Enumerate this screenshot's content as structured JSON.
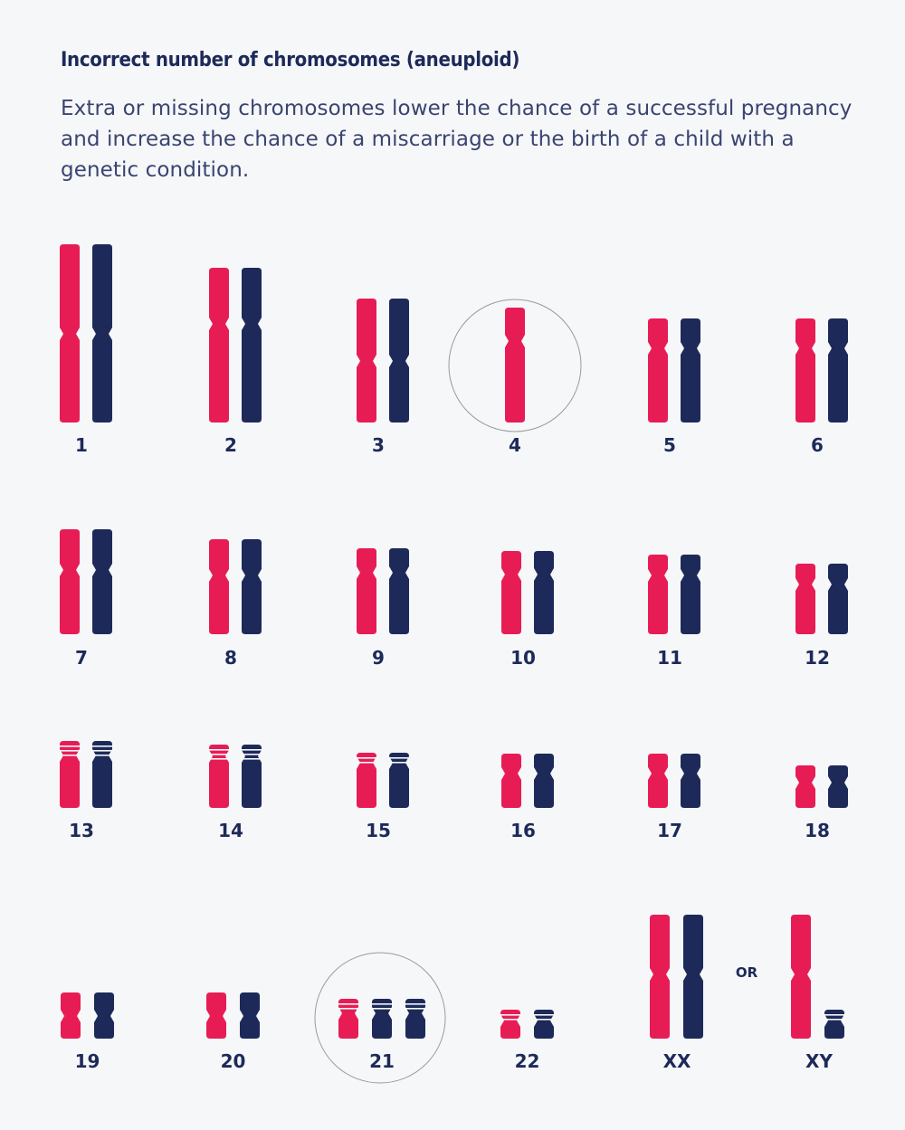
{
  "header": {
    "title": "Incorrect number of chromosomes (aneuploid)",
    "description": "Extra or missing chromosomes lower the chance of a successful pregnancy and increase the chance of a miscarriage or the birth of a child with a genetic condition."
  },
  "colors": {
    "pink": "#e81c55",
    "navy": "#1d2a59",
    "circle": "#9a9a9a",
    "background": "#f6f7f9"
  },
  "karyotype": {
    "pairs": [
      {
        "label": "1",
        "copies": 2,
        "highlighted": false
      },
      {
        "label": "2",
        "copies": 2,
        "highlighted": false
      },
      {
        "label": "3",
        "copies": 2,
        "highlighted": false
      },
      {
        "label": "4",
        "copies": 1,
        "highlighted": true
      },
      {
        "label": "5",
        "copies": 2,
        "highlighted": false
      },
      {
        "label": "6",
        "copies": 2,
        "highlighted": false
      },
      {
        "label": "7",
        "copies": 2,
        "highlighted": false
      },
      {
        "label": "8",
        "copies": 2,
        "highlighted": false
      },
      {
        "label": "9",
        "copies": 2,
        "highlighted": false
      },
      {
        "label": "10",
        "copies": 2,
        "highlighted": false
      },
      {
        "label": "11",
        "copies": 2,
        "highlighted": false
      },
      {
        "label": "12",
        "copies": 2,
        "highlighted": false
      },
      {
        "label": "13",
        "copies": 2,
        "highlighted": false
      },
      {
        "label": "14",
        "copies": 2,
        "highlighted": false
      },
      {
        "label": "15",
        "copies": 2,
        "highlighted": false
      },
      {
        "label": "16",
        "copies": 2,
        "highlighted": false
      },
      {
        "label": "17",
        "copies": 2,
        "highlighted": false
      },
      {
        "label": "18",
        "copies": 2,
        "highlighted": false
      },
      {
        "label": "19",
        "copies": 2,
        "highlighted": false
      },
      {
        "label": "20",
        "copies": 2,
        "highlighted": false
      },
      {
        "label": "21",
        "copies": 3,
        "highlighted": true
      },
      {
        "label": "22",
        "copies": 2,
        "highlighted": false
      }
    ],
    "sex": {
      "female_label": "XX",
      "separator": "OR",
      "male_label": "XY"
    }
  }
}
